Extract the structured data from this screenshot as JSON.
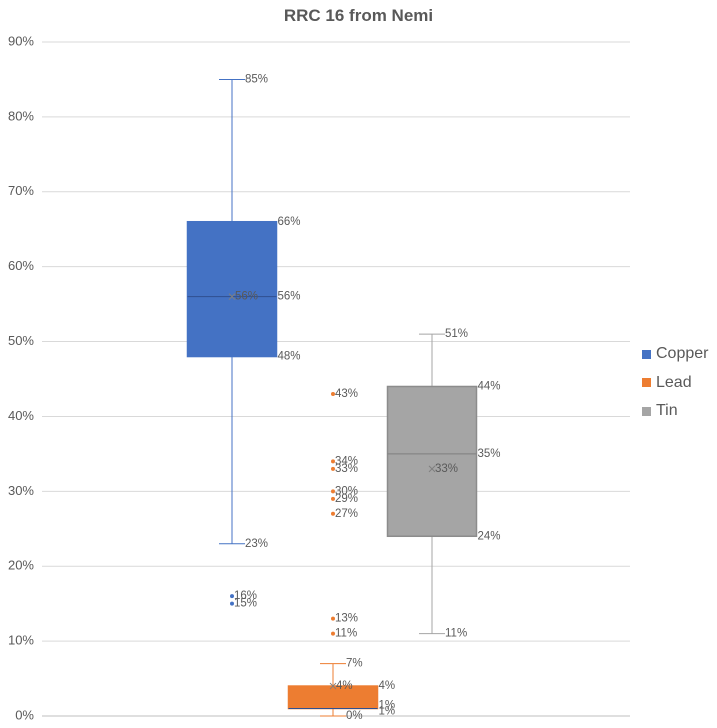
{
  "chart_data": {
    "type": "box",
    "title": "RRC 16  from Nemi",
    "xlabel": "",
    "ylabel": "",
    "ylim": [
      0,
      90
    ],
    "y_ticks": [
      "0%",
      "10%",
      "20%",
      "30%",
      "40%",
      "50%",
      "60%",
      "70%",
      "80%",
      "90%"
    ],
    "grid": true,
    "legend_position": "right",
    "series": [
      {
        "name": "Copper",
        "color": "#4472C4",
        "whisker_low": 23,
        "q1": 48,
        "median": 56,
        "q3": 66,
        "whisker_high": 85,
        "mean": 56,
        "outliers": [
          16,
          15
        ],
        "labels": {
          "whisker_high": "85%",
          "q3": "66%",
          "median": "56%",
          "mean": "56%",
          "q1": "48%",
          "whisker_low": "23%",
          "outliers": [
            "16%",
            "15%"
          ]
        }
      },
      {
        "name": "Lead",
        "color": "#ED7D31",
        "whisker_low": 0,
        "q1": 1,
        "median": 1,
        "q3": 4,
        "whisker_high": 7,
        "mean": 4,
        "outliers": [
          43,
          34,
          33,
          30,
          29,
          27,
          13,
          11
        ],
        "labels": {
          "whisker_high": "7%",
          "q3": "4%",
          "median": "1%",
          "mean": "4%",
          "q1": "1%",
          "whisker_low": "0%",
          "outliers": [
            "43%",
            "34%",
            "33%",
            "30%",
            "29%",
            "27%",
            "13%",
            "11%"
          ]
        }
      },
      {
        "name": "Tin",
        "color": "#A5A5A5",
        "whisker_low": 11,
        "q1": 24,
        "median": 35,
        "q3": 44,
        "whisker_high": 51,
        "mean": 33,
        "outliers": [],
        "labels": {
          "whisker_high": "51%",
          "q3": "44%",
          "median": "35%",
          "mean": "33%",
          "q1": "24%",
          "whisker_low": "11%",
          "outliers": []
        }
      }
    ]
  }
}
